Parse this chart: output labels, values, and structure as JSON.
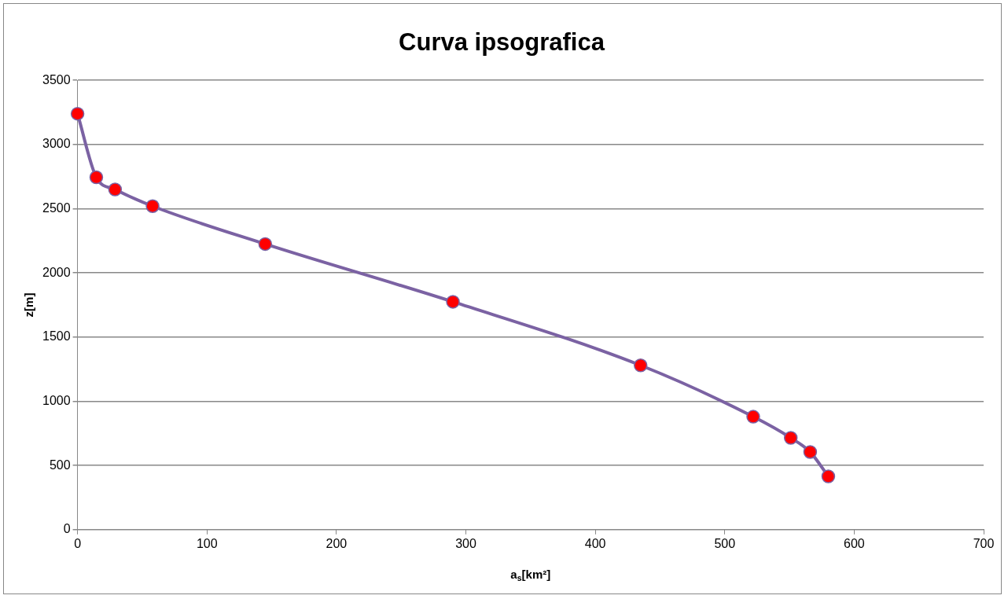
{
  "chart_data": {
    "type": "line",
    "title": "Curva ipsografica",
    "xlabel": "a$_{s}$[km²]",
    "ylabel": "z[m]",
    "x": [
      0,
      14.5,
      29,
      58,
      145,
      290,
      435,
      522,
      551,
      566,
      580
    ],
    "series": [
      {
        "color": "#7b62a3",
        "values": [
          3240,
          2745,
          2650,
          2520,
          2225,
          1775,
          1280,
          880,
          715,
          605,
          415
        ]
      }
    ],
    "marker": "circle",
    "grid": "y",
    "legend": false,
    "xlim": [
      0,
      700
    ],
    "xticks": [
      0,
      100,
      200,
      300,
      400,
      500,
      600,
      700
    ],
    "ylim": [
      0,
      3500
    ],
    "yticks": [
      0,
      500,
      1000,
      1500,
      2000,
      2500,
      3000,
      3500
    ]
  }
}
